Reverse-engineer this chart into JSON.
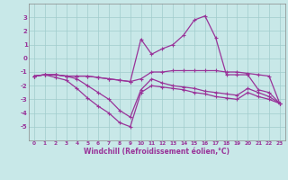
{
  "xlabel": "Windchill (Refroidissement éolien,°C)",
  "x_ticks": [
    0,
    1,
    2,
    3,
    4,
    5,
    6,
    7,
    8,
    9,
    10,
    11,
    12,
    13,
    14,
    15,
    16,
    17,
    18,
    19,
    20,
    21,
    22,
    23
  ],
  "ylim": [
    -6,
    4
  ],
  "yticks": [
    -5,
    -4,
    -3,
    -2,
    -1,
    0,
    1,
    2,
    3
  ],
  "background_color": "#c8e8e8",
  "grid_color": "#a0cccc",
  "line_color": "#993399",
  "line1_y": [
    -1.3,
    -1.2,
    -1.2,
    -1.3,
    -1.3,
    -1.3,
    -1.4,
    -1.5,
    -1.6,
    -1.7,
    -1.5,
    -1.0,
    -1.0,
    -0.9,
    -0.9,
    -0.9,
    -0.9,
    -0.9,
    -1.0,
    -1.0,
    -1.1,
    -1.2,
    -1.3,
    -3.3
  ],
  "line2_y": [
    -1.3,
    -1.2,
    -1.2,
    -1.3,
    -1.5,
    -2.0,
    -2.5,
    -3.0,
    -3.8,
    -4.3,
    -2.3,
    -1.5,
    -1.8,
    -2.0,
    -2.1,
    -2.2,
    -2.4,
    -2.5,
    -2.6,
    -2.7,
    -2.2,
    -2.5,
    -2.8,
    -3.3
  ],
  "line3_y": [
    -1.3,
    -1.2,
    -1.4,
    -1.6,
    -2.2,
    -2.9,
    -3.5,
    -4.0,
    -4.7,
    -5.0,
    -2.5,
    -2.0,
    -2.1,
    -2.2,
    -2.3,
    -2.5,
    -2.6,
    -2.8,
    -2.9,
    -3.0,
    -2.5,
    -2.8,
    -3.0,
    -3.3
  ],
  "line4_y": [
    -1.3,
    -1.2,
    -1.2,
    -1.3,
    -1.3,
    -1.3,
    -1.4,
    -1.5,
    -1.6,
    -1.7,
    1.4,
    0.3,
    0.7,
    1.0,
    1.7,
    2.8,
    3.1,
    1.5,
    -1.2,
    -1.2,
    -1.2,
    -2.3,
    -2.5,
    -3.3
  ]
}
